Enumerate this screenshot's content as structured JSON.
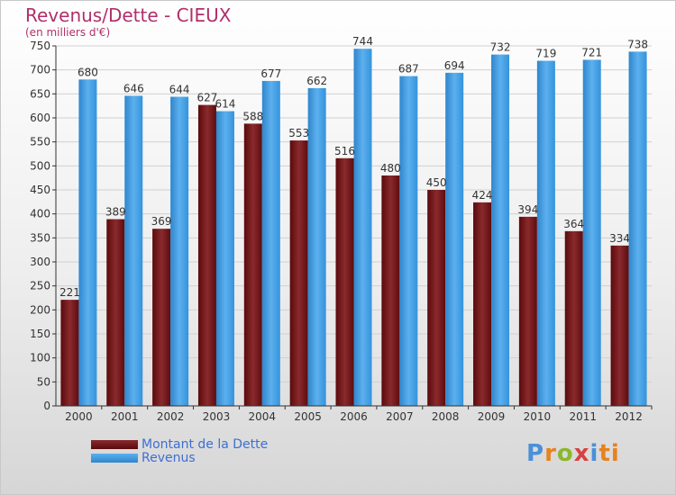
{
  "title": "Revenus/Dette - CIEUX",
  "subtitle": "(en milliers d'€)",
  "logo": [
    "P",
    "r",
    "o",
    "x",
    "i",
    "ti"
  ],
  "colors": {
    "dette": "#6e0f12",
    "revenus": "#3c9be0",
    "axis": "#333333",
    "grid": "#d0d0d0"
  },
  "chart_data": {
    "type": "bar",
    "categories": [
      "2000",
      "2001",
      "2002",
      "2003",
      "2004",
      "2005",
      "2006",
      "2007",
      "2008",
      "2009",
      "2010",
      "2011",
      "2012"
    ],
    "series": [
      {
        "name": "Montant de la Dette",
        "values": [
          221,
          389,
          369,
          627,
          588,
          553,
          516,
          480,
          450,
          424,
          394,
          364,
          334
        ]
      },
      {
        "name": "Revenus",
        "values": [
          680,
          646,
          644,
          614,
          677,
          662,
          744,
          687,
          694,
          732,
          719,
          721,
          738
        ]
      }
    ],
    "ylim": [
      0,
      750
    ],
    "yticks": [
      0,
      50,
      100,
      150,
      200,
      250,
      300,
      350,
      400,
      450,
      500,
      550,
      600,
      650,
      700,
      750
    ],
    "grid": true,
    "legend": "bottom-left"
  }
}
